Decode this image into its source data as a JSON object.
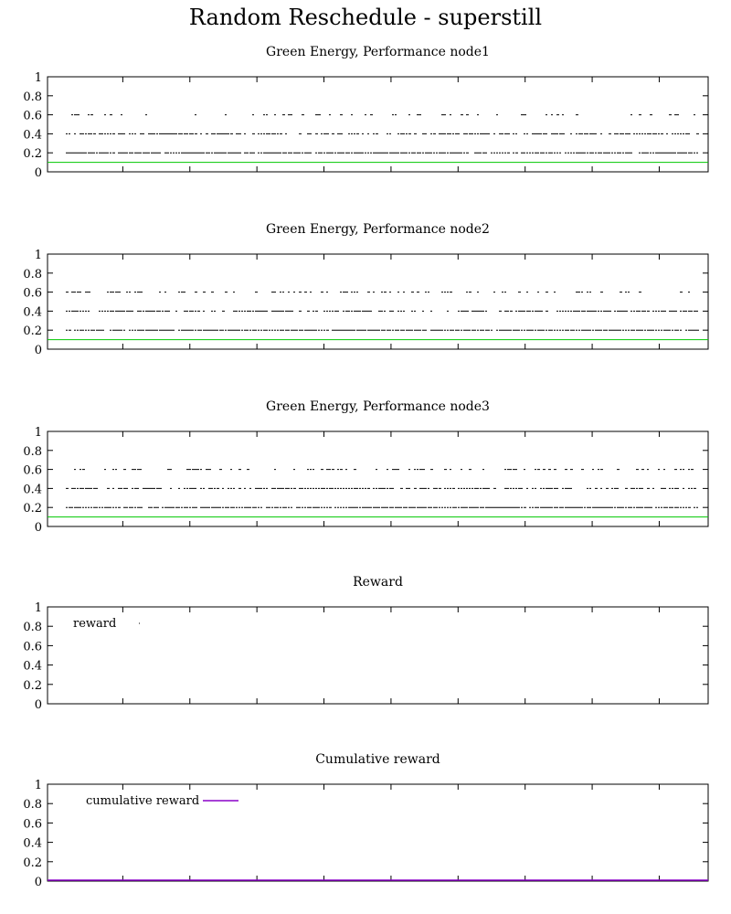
{
  "title": "Random Reschedule - superstill",
  "chart_data": [
    {
      "type": "scatter",
      "title": "Green Energy, Performance node1",
      "xlabel": "",
      "ylabel": "",
      "ylim": [
        0,
        1
      ],
      "yticks": [
        "0",
        "0.2",
        "0.4",
        "0.6",
        "0.8",
        "1"
      ],
      "x_tick_count": 9,
      "threshold": {
        "value": 0.1,
        "color": "#00c800"
      },
      "levels": [
        {
          "value": 0.6,
          "density": 0.22
        },
        {
          "value": 0.4,
          "density": 0.7
        },
        {
          "value": 0.2,
          "density": 0.95
        }
      ],
      "legend": null
    },
    {
      "type": "scatter",
      "title": "Green Energy, Performance node2",
      "xlabel": "",
      "ylabel": "",
      "ylim": [
        0,
        1
      ],
      "yticks": [
        "0",
        "0.2",
        "0.4",
        "0.6",
        "0.8",
        "1"
      ],
      "x_tick_count": 9,
      "threshold": {
        "value": 0.1,
        "color": "#00c800"
      },
      "levels": [
        {
          "value": 0.6,
          "density": 0.3
        },
        {
          "value": 0.4,
          "density": 0.72
        },
        {
          "value": 0.2,
          "density": 0.95
        }
      ],
      "legend": null
    },
    {
      "type": "scatter",
      "title": "Green Energy, Performance node3",
      "xlabel": "",
      "ylabel": "",
      "ylim": [
        0,
        1
      ],
      "yticks": [
        "0",
        "0.2",
        "0.4",
        "0.6",
        "0.8",
        "1"
      ],
      "x_tick_count": 9,
      "threshold": {
        "value": 0.1,
        "color": "#00c800"
      },
      "levels": [
        {
          "value": 0.6,
          "density": 0.35
        },
        {
          "value": 0.4,
          "density": 0.75
        },
        {
          "value": 0.2,
          "density": 0.95
        }
      ],
      "legend": null
    },
    {
      "type": "line",
      "title": "Reward",
      "xlabel": "",
      "ylabel": "",
      "ylim": [
        0,
        1
      ],
      "yticks": [
        "0",
        "0.2",
        "0.4",
        "0.6",
        "0.8",
        "1"
      ],
      "x_tick_count": 9,
      "series": [
        {
          "name": "reward",
          "color": "#000000",
          "values": []
        }
      ],
      "legend": {
        "label": "reward",
        "position": "top-left",
        "sample_color": "#000000"
      }
    },
    {
      "type": "line",
      "title": "Cumulative reward",
      "xlabel": "",
      "ylabel": "",
      "ylim": [
        0,
        1
      ],
      "yticks": [
        "0",
        "0.2",
        "0.4",
        "0.6",
        "0.8",
        "1"
      ],
      "x_tick_count": 9,
      "series": [
        {
          "name": "cumulative reward",
          "color": "#8a00c8",
          "values": [
            0,
            0
          ]
        }
      ],
      "legend": {
        "label": "cumulative reward",
        "position": "top-left",
        "sample_color": "#8a00c8"
      }
    }
  ]
}
